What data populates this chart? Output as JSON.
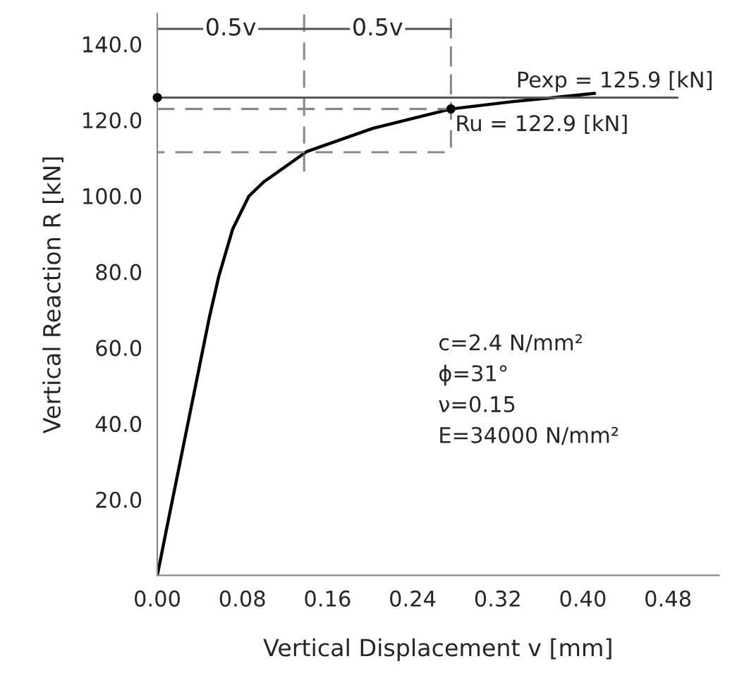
{
  "chart_data": {
    "type": "line",
    "xlabel": "Vertical Displacement v [mm]",
    "ylabel": "Vertical Reaction R [kN]",
    "xlim": [
      0,
      0.528
    ],
    "ylim": [
      0,
      148
    ],
    "xticks": [
      {
        "value": 0,
        "label": "0.00"
      },
      {
        "value": 0.08,
        "label": "0.08"
      },
      {
        "value": 0.16,
        "label": "0.16"
      },
      {
        "value": 0.24,
        "label": "0.24"
      },
      {
        "value": 0.32,
        "label": "0.32"
      },
      {
        "value": 0.4,
        "label": "0.40"
      },
      {
        "value": 0.48,
        "label": "0.48"
      }
    ],
    "yticks": [
      {
        "value": 20,
        "label": "20.0"
      },
      {
        "value": 40,
        "label": "40.0"
      },
      {
        "value": 60,
        "label": "60.0"
      },
      {
        "value": 80,
        "label": "80.0"
      },
      {
        "value": 100,
        "label": "100.0"
      },
      {
        "value": 120,
        "label": "120.0"
      },
      {
        "value": 140,
        "label": "140.0"
      }
    ],
    "grid": false,
    "legend": false,
    "series": [
      {
        "color": "#000000",
        "line_style": "solid",
        "x": [
          0,
          0.0087,
          0.0488,
          0.0579,
          0.0708,
          0.086,
          0.0997,
          0.14,
          0.2026,
          0.276,
          0.333,
          0.411
        ],
        "values": [
          0,
          12.2,
          67.8,
          78.9,
          91.2,
          99.9,
          103.6,
          111.6,
          117.8,
          122.9,
          124.8,
          127.0
        ]
      },
      {
        "color": "#555555",
        "line_style": "solid",
        "x": [
          0,
          0.489
        ],
        "values": [
          125.9,
          125.9
        ]
      },
      {
        "color": "#888888",
        "line_style": "dashed",
        "x": [
          0,
          0.276,
          0.276,
          0.276,
          0
        ],
        "values": [
          122.9,
          122.9,
          147.8,
          111.5,
          111.5
        ]
      },
      {
        "color": "#888888",
        "line_style": "dashed",
        "x": [
          0.138,
          0.138
        ],
        "values": [
          147.8,
          106
        ]
      },
      {
        "color": "#555555",
        "line_style": "solid",
        "x": [
          0,
          0.138,
          0.276
        ],
        "values": [
          144,
          144,
          144
        ]
      },
      {
        "type": "scatter",
        "color": "#000000",
        "marker": "circle",
        "x": [
          0,
          0.276
        ],
        "values": [
          125.9,
          122.9
        ]
      }
    ],
    "annotations": [
      {
        "text": "0.5v",
        "x": 0.069,
        "y": 144
      },
      {
        "text": "0.5v",
        "x": 0.207,
        "y": 144
      },
      {
        "text": "Pexp = 125.9 [kN]",
        "x": 0.43,
        "y": 125.9
      },
      {
        "text": "Ru = 122.9 [kN]",
        "x": 0.276,
        "y": 122.9
      },
      "c=2.4 N/mm²",
      "ϕ=31°",
      "ν=0.15",
      "E=34000 N/mm²"
    ]
  }
}
